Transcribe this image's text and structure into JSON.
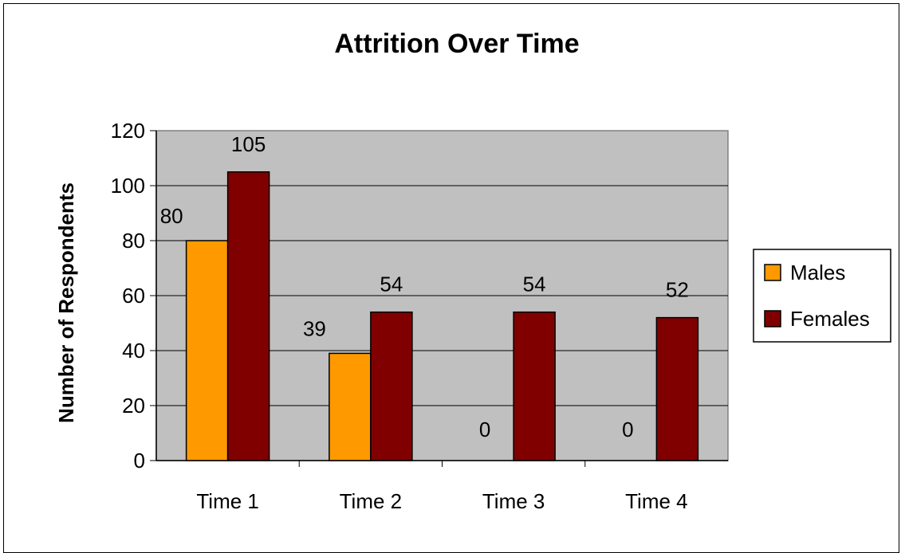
{
  "chart_data": {
    "type": "bar",
    "title": "Attrition Over Time",
    "xlabel": "",
    "ylabel": "Number of Respondents",
    "categories": [
      "Time 1",
      "Time 2",
      "Time 3",
      "Time 4"
    ],
    "series": [
      {
        "name": "Males",
        "values": [
          80,
          39,
          0,
          0
        ],
        "color": "#FF9900"
      },
      {
        "name": "Females",
        "values": [
          105,
          54,
          54,
          52
        ],
        "color": "#800000"
      }
    ],
    "ylim": [
      0,
      120
    ],
    "yticks": [
      0,
      20,
      40,
      60,
      80,
      100,
      120
    ],
    "grid": true,
    "legend_position": "right",
    "plot_background": "#C0C0C0"
  }
}
